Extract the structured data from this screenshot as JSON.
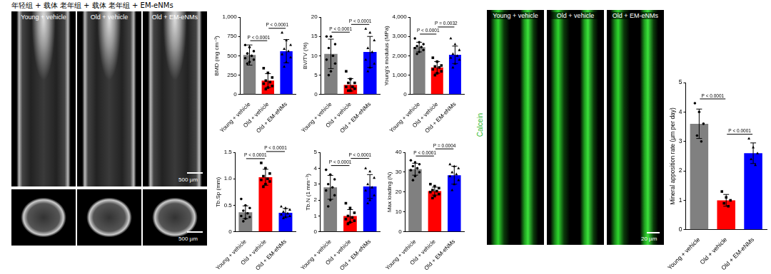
{
  "header": "年轻组 + 载体 老年组 + 载体 老年组 + EM-eNMs",
  "micro_ct": {
    "panels": [
      "Young + vehicle",
      "Old + vehicle",
      "Old + EM-eNMs"
    ],
    "scale_bars": [
      "500 µm",
      "500 µm"
    ]
  },
  "calcein": {
    "label": "Calcein",
    "panels": [
      "Young + vehicle",
      "Old + vehicle",
      "Old + EM-eNMs"
    ],
    "scale_bar": "20 µm"
  },
  "chart_data": [
    {
      "type": "bar",
      "ylabel": "BMD (mg cm⁻³)",
      "categories": [
        "Young + vehicle",
        "Old + vehicle",
        "Old + EM-eNMs"
      ],
      "values": [
        510,
        180,
        560
      ],
      "errors": [
        130,
        90,
        150
      ],
      "colors": [
        "#808080",
        "#ff0000",
        "#0000ff"
      ],
      "points": [
        [
          640,
          610,
          560,
          530,
          500,
          470,
          450,
          420,
          400
        ],
        [
          340,
          280,
          220,
          180,
          160,
          140,
          110,
          90,
          70
        ],
        [
          800,
          700,
          640,
          590,
          560,
          520,
          480,
          420,
          360
        ]
      ],
      "ylim": [
        0,
        1000
      ],
      "yticks": [
        0,
        250,
        500,
        750,
        {
          "value": 1000,
          "label": "1,000"
        }
      ],
      "grid": false,
      "comparisons": [
        {
          "from": "Young + vehicle",
          "to": "Old + vehicle",
          "label": "P < 0.0001"
        },
        {
          "from": "Old + vehicle",
          "to": "Old + EM-eNMs",
          "label": "P < 0.0001"
        }
      ]
    },
    {
      "type": "bar",
      "ylabel": "BV/TV (%)",
      "categories": [
        "Young + vehicle",
        "Old + vehicle",
        "Old + EM-eNMs"
      ],
      "values": [
        10.5,
        2.5,
        11
      ],
      "errors": [
        3.8,
        1.6,
        4
      ],
      "colors": [
        "#808080",
        "#ff0000",
        "#0000ff"
      ],
      "points": [
        [
          15,
          15,
          13,
          12,
          10,
          9,
          8,
          6,
          5
        ],
        [
          6,
          4,
          3,
          3,
          2,
          2,
          1.5,
          1,
          1
        ],
        [
          17,
          16,
          14,
          12,
          11,
          9,
          8,
          7,
          6
        ]
      ],
      "ylim": [
        0,
        20
      ],
      "yticks": [
        0,
        5,
        10,
        15,
        20
      ],
      "grid": false,
      "comparisons": [
        {
          "from": "Young + vehicle",
          "to": "Old + vehicle",
          "label": "P < 0.0001"
        },
        {
          "from": "Old + vehicle",
          "to": "Old + EM-eNMs",
          "label": "P < 0.0001"
        }
      ]
    },
    {
      "type": "bar",
      "ylabel": "Young's modulus (MPa)",
      "categories": [
        "Young + vehicle",
        "Old + vehicle",
        "Old + EM-eNMs"
      ],
      "values": [
        2450,
        1400,
        2050
      ],
      "errors": [
        250,
        300,
        450
      ],
      "colors": [
        "#808080",
        "#ff0000",
        "#0000ff"
      ],
      "points": [
        [
          2900,
          2700,
          2600,
          2500,
          2450,
          2400,
          2300,
          2200,
          2100
        ],
        [
          1900,
          1700,
          1500,
          1450,
          1400,
          1300,
          1200,
          1100,
          1000
        ],
        [
          2900,
          2600,
          2300,
          2100,
          2000,
          1900,
          1800,
          1600,
          1400
        ]
      ],
      "ylim": [
        0,
        4000
      ],
      "yticks": [
        0,
        {
          "value": 1000,
          "label": "1,000"
        },
        {
          "value": 2000,
          "label": "2,000"
        },
        {
          "value": 3000,
          "label": "3,000"
        },
        {
          "value": 4000,
          "label": "4,000"
        }
      ],
      "grid": false,
      "comparisons": [
        {
          "from": "Young + vehicle",
          "to": "Old + vehicle",
          "label": "P < 0.0001"
        },
        {
          "from": "Old + vehicle",
          "to": "Old + EM-eNMs",
          "label": "P = 0.0032"
        }
      ]
    },
    {
      "type": "bar",
      "ylabel": "Tb.Sp (mm)",
      "categories": [
        "Young + vehicle",
        "Old + vehicle",
        "Old + EM-eNMs"
      ],
      "values": [
        0.37,
        1.03,
        0.36
      ],
      "errors": [
        0.12,
        0.15,
        0.08
      ],
      "colors": [
        "#808080",
        "#ff0000",
        "#0000ff"
      ],
      "points": [
        [
          0.62,
          0.5,
          0.45,
          0.4,
          0.35,
          0.3,
          0.28,
          0.25,
          0.2
        ],
        [
          1.3,
          1.2,
          1.1,
          1.05,
          1.0,
          0.98,
          0.95,
          0.9,
          0.85
        ],
        [
          0.48,
          0.45,
          0.42,
          0.38,
          0.35,
          0.33,
          0.3,
          0.28,
          0.26
        ]
      ],
      "ylim": [
        0,
        1.5
      ],
      "yticks": [
        0,
        0.5,
        {
          "value": 1,
          "label": "1.0"
        },
        1.5
      ],
      "grid": false,
      "comparisons": [
        {
          "from": "Young + vehicle",
          "to": "Old + vehicle",
          "label": "P < 0.0001"
        },
        {
          "from": "Old + vehicle",
          "to": "Old + EM-eNMs",
          "label": "P < 0.0001"
        }
      ]
    },
    {
      "type": "bar",
      "ylabel": "Tb.N (1 mm⁻¹)",
      "categories": [
        "Young + vehicle",
        "Old + vehicle",
        "Old + EM-eNMs"
      ],
      "values": [
        2.8,
        1.0,
        2.85
      ],
      "errors": [
        0.75,
        0.4,
        0.75
      ],
      "colors": [
        "#808080",
        "#ff0000",
        "#0000ff"
      ],
      "points": [
        [
          3.9,
          3.6,
          3.3,
          3.0,
          2.8,
          2.6,
          2.3,
          2.0,
          1.6
        ],
        [
          1.8,
          1.5,
          1.2,
          1.0,
          0.9,
          0.8,
          0.7,
          0.6,
          0.5
        ],
        [
          4.0,
          3.8,
          3.4,
          3.0,
          2.8,
          2.6,
          2.3,
          2.0,
          1.8
        ]
      ],
      "ylim": [
        0,
        5
      ],
      "yticks": [
        0,
        1,
        2,
        3,
        4,
        5
      ],
      "grid": false,
      "comparisons": [
        {
          "from": "Young + vehicle",
          "to": "Old + vehicle",
          "label": "P < 0.0001"
        },
        {
          "from": "Old + vehicle",
          "to": "Old + EM-eNMs",
          "label": "P < 0.0001"
        }
      ]
    },
    {
      "type": "bar",
      "ylabel": "Max loading (N)",
      "categories": [
        "Young + vehicle",
        "Old + vehicle",
        "Old + EM-eNMs"
      ],
      "values": [
        31.5,
        20.5,
        28.5
      ],
      "errors": [
        3,
        2,
        4.5
      ],
      "colors": [
        "#808080",
        "#ff0000",
        "#0000ff"
      ],
      "points": [
        [
          36,
          35,
          34,
          33,
          32,
          31,
          30,
          28,
          26
        ],
        [
          24,
          23,
          22,
          21,
          20.5,
          20,
          19,
          18,
          17
        ],
        [
          34,
          33,
          32,
          30,
          29,
          28,
          26,
          24,
          21
        ]
      ],
      "ylim": [
        0,
        40
      ],
      "yticks": [
        0,
        10,
        20,
        30,
        40
      ],
      "grid": false,
      "comparisons": [
        {
          "from": "Young + vehicle",
          "to": "Old + vehicle",
          "label": "P < 0.0001"
        },
        {
          "from": "Old + vehicle",
          "to": "Old + EM-eNMs",
          "label": "P = 0.0004"
        }
      ]
    },
    {
      "type": "bar",
      "ylabel": "Mineral apposition rate (µm per day)",
      "categories": [
        "Young + vehicle",
        "Old + vehicle",
        "Old + EM-eNMs"
      ],
      "values": [
        3.6,
        1.0,
        2.6
      ],
      "errors": [
        0.5,
        0.2,
        0.35
      ],
      "colors": [
        "#808080",
        "#ff0000",
        "#0000ff"
      ],
      "points": [
        [
          4.3,
          4.0,
          3.6,
          3.2,
          3.0
        ],
        [
          1.3,
          1.1,
          1.0,
          0.9,
          0.8
        ],
        [
          3.1,
          2.8,
          2.6,
          2.4,
          2.2
        ]
      ],
      "ylim": [
        0,
        5
      ],
      "yticks": [
        0,
        1,
        2,
        3,
        4,
        5
      ],
      "grid": false,
      "comparisons": [
        {
          "from": "Young + vehicle",
          "to": "Old + vehicle",
          "label": "P < 0.0001"
        },
        {
          "from": "Old + vehicle",
          "to": "Old + EM-eNMs",
          "label": "P < 0.0001"
        }
      ]
    }
  ]
}
